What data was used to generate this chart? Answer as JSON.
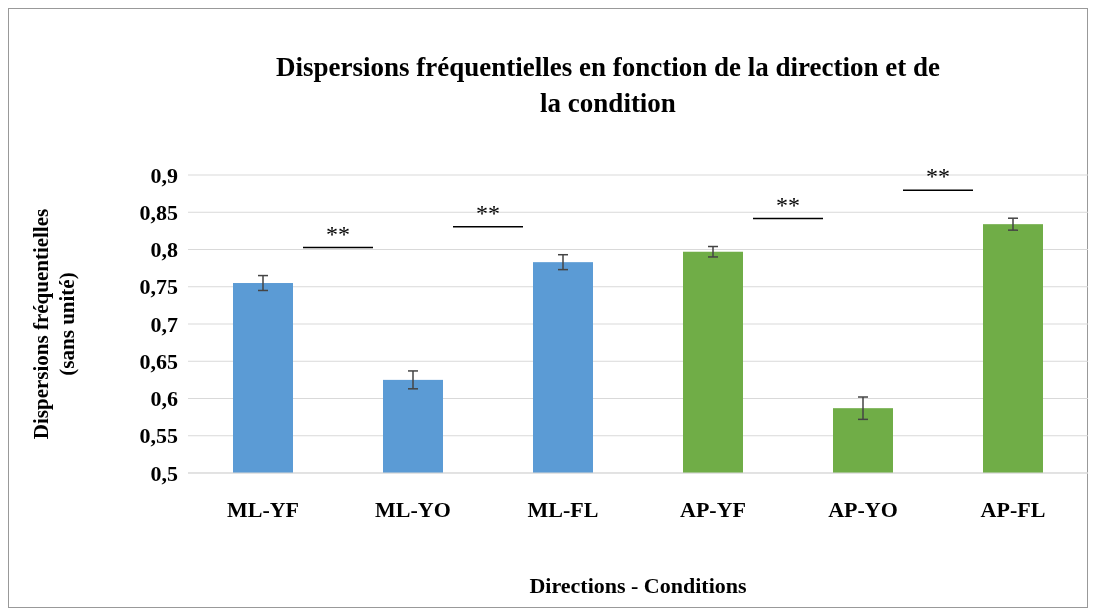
{
  "chart_data": {
    "type": "bar",
    "title": "Dispersions fréquentielles en fonction de la direction et de la condition",
    "xlabel": "Directions - Conditions",
    "ylabel": "Dispersions fréquentielles (sans unité)",
    "categories": [
      "ML-YF",
      "ML-YO",
      "ML-FL",
      "AP-YF",
      "AP-YO",
      "AP-FL"
    ],
    "values": [
      0.755,
      0.625,
      0.783,
      0.797,
      0.587,
      0.834
    ],
    "errors": [
      0.01,
      0.012,
      0.01,
      0.007,
      0.015,
      0.008
    ],
    "colors": [
      "#5b9bd5",
      "#5b9bd5",
      "#5b9bd5",
      "#70ad47",
      "#70ad47",
      "#70ad47"
    ],
    "ylim": [
      0.5,
      0.9
    ],
    "yticks": [
      {
        "value": 0.5,
        "label": "0,5"
      },
      {
        "value": 0.55,
        "label": "0,55"
      },
      {
        "value": 0.6,
        "label": "0,6"
      },
      {
        "value": 0.65,
        "label": "0,65"
      },
      {
        "value": 0.7,
        "label": "0,7"
      },
      {
        "value": 0.75,
        "label": "0,75"
      },
      {
        "value": 0.8,
        "label": "0,8"
      },
      {
        "value": 0.85,
        "label": "0,85"
      },
      {
        "value": 0.9,
        "label": "0,9"
      }
    ],
    "grid": "y",
    "annotations": [
      "**",
      "**",
      "**",
      "**"
    ]
  }
}
